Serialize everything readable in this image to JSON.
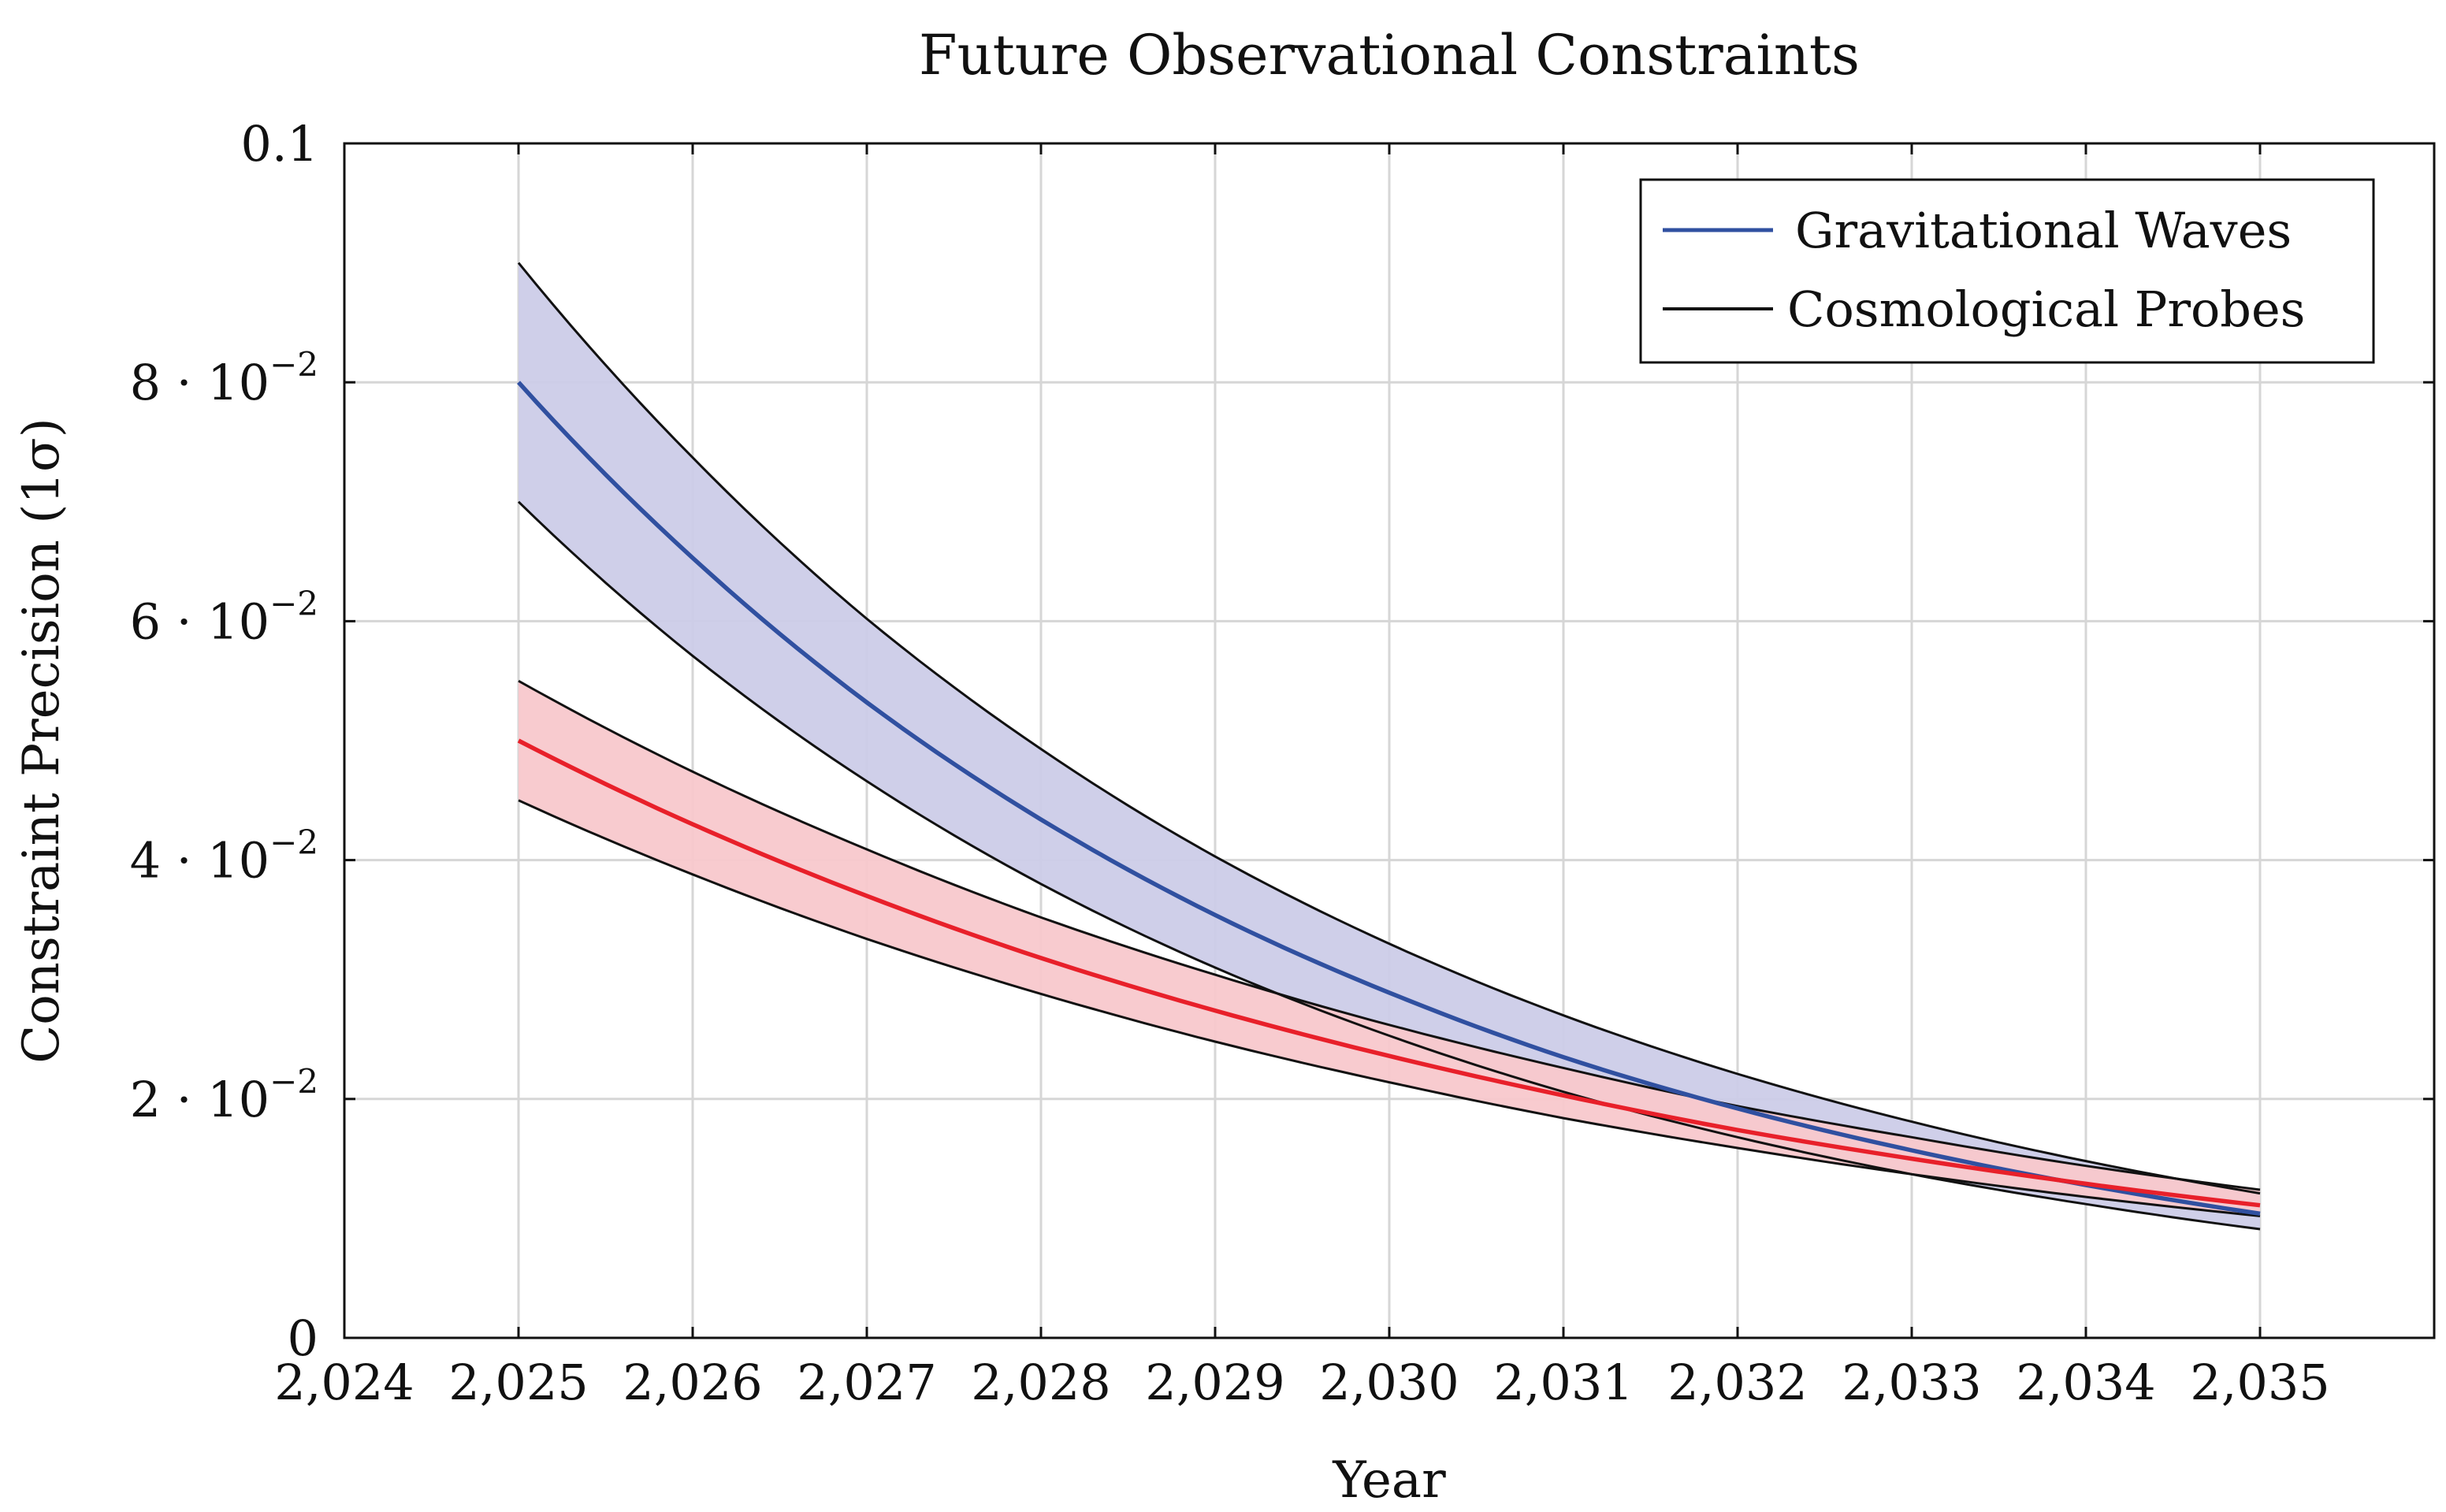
{
  "chart_data": {
    "type": "line",
    "title": "Future Observational Constraints",
    "xlabel": "Year",
    "ylabel": "Constraint Precision (1σ)",
    "xlim": [
      2024,
      2036
    ],
    "ylim": [
      0,
      0.1
    ],
    "grid": true,
    "legend_position": "top-right",
    "x_ticks": [
      {
        "value": 2024,
        "label": "2,024"
      },
      {
        "value": 2025,
        "label": "2,025"
      },
      {
        "value": 2026,
        "label": "2,026"
      },
      {
        "value": 2027,
        "label": "2,027"
      },
      {
        "value": 2028,
        "label": "2,028"
      },
      {
        "value": 2029,
        "label": "2,029"
      },
      {
        "value": 2030,
        "label": "2,030"
      },
      {
        "value": 2031,
        "label": "2,031"
      },
      {
        "value": 2032,
        "label": "2,032"
      },
      {
        "value": 2033,
        "label": "2,033"
      },
      {
        "value": 2034,
        "label": "2,034"
      },
      {
        "value": 2035,
        "label": "2,035"
      }
    ],
    "y_ticks": [
      {
        "value": 0,
        "base": "0",
        "exp": ""
      },
      {
        "value": 0.02,
        "base": "2 · 10",
        "exp": "−2"
      },
      {
        "value": 0.04,
        "base": "4 · 10",
        "exp": "−2"
      },
      {
        "value": 0.06,
        "base": "6 · 10",
        "exp": "−2"
      },
      {
        "value": 0.08,
        "base": "8 · 10",
        "exp": "−2"
      },
      {
        "value": 0.1,
        "base": "0.1",
        "exp": ""
      }
    ],
    "series": [
      {
        "name": "Gravitational Waves",
        "color": "#3050a0",
        "band_fill": "#cccce8",
        "x": [
          2025,
          2026,
          2027,
          2028,
          2029,
          2030,
          2031,
          2032,
          2033,
          2034,
          2035
        ],
        "values": [
          0.08,
          0.0653,
          0.0532,
          0.0434,
          0.0354,
          0.0289,
          0.0235,
          0.0192,
          0.0157,
          0.0128,
          0.0104
        ],
        "upper": [
          0.09,
          0.0737,
          0.0602,
          0.0493,
          0.0403,
          0.033,
          0.027,
          0.0221,
          0.0181,
          0.0148,
          0.0121
        ],
        "lower": [
          0.07,
          0.0571,
          0.0466,
          0.038,
          0.031,
          0.0253,
          0.0206,
          0.0168,
          0.0137,
          0.0112,
          0.0091
        ]
      },
      {
        "name": "Cosmological Probes",
        "color": "#e8202a",
        "band_fill": "#f8c8cc",
        "x": [
          2025,
          2026,
          2027,
          2028,
          2029,
          2030,
          2031,
          2032,
          2033,
          2034,
          2035
        ],
        "values": [
          0.05,
          0.043,
          0.037,
          0.0318,
          0.0274,
          0.0236,
          0.0203,
          0.0174,
          0.015,
          0.0129,
          0.0111
        ],
        "upper": [
          0.055,
          0.0474,
          0.0409,
          0.0352,
          0.0304,
          0.0262,
          0.0226,
          0.0194,
          0.0168,
          0.0144,
          0.0124
        ],
        "lower": [
          0.045,
          0.0388,
          0.0334,
          0.0288,
          0.0248,
          0.0214,
          0.0184,
          0.0159,
          0.0137,
          0.0118,
          0.0102
        ]
      }
    ],
    "legend": [
      {
        "label": "Gravitational Waves",
        "color": "#3050a0"
      },
      {
        "label": "Cosmological Probes",
        "color": "#111111"
      }
    ]
  }
}
